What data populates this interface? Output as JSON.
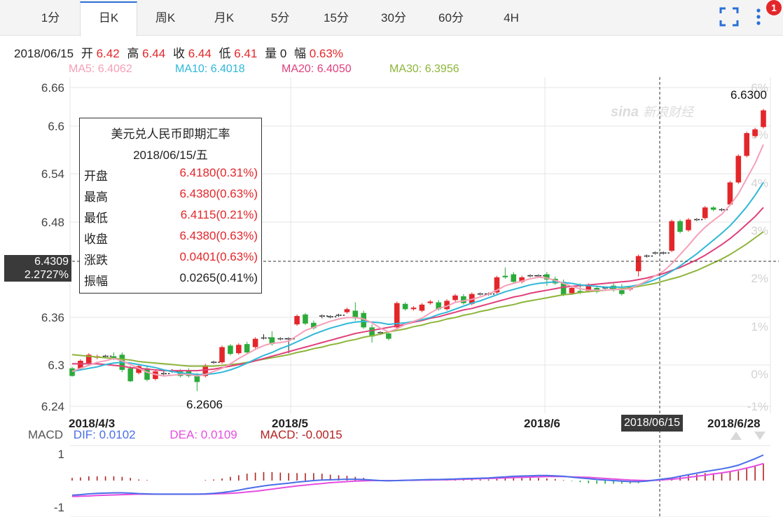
{
  "tabs": [
    "1分",
    "日K",
    "周K",
    "月K",
    "5分",
    "15分",
    "30分",
    "60分",
    "4H"
  ],
  "active_tab": "日K",
  "notification_count": "1",
  "info_bar": {
    "date": "2018/06/15",
    "open_label": "开",
    "open": "6.42",
    "high_label": "高",
    "high": "6.44",
    "close_label": "收",
    "close": "6.44",
    "low_label": "低",
    "low": "6.41",
    "vol_label": "量",
    "vol": "0",
    "amp_label": "幅",
    "amp": "0.63%"
  },
  "ma_legend": [
    {
      "text": "MA5: 6.4062",
      "color": "#f5a0b8"
    },
    {
      "text": "MA10: 6.4018",
      "color": "#2fb8d8"
    },
    {
      "text": "MA20: 6.4050",
      "color": "#e0407a"
    },
    {
      "text": "MA30: 6.3956",
      "color": "#8db53a"
    }
  ],
  "watermark": "新浪财经",
  "tooltip": {
    "title": "美元兑人民币即期汇率",
    "date": "2018/06/15/五",
    "rows": [
      {
        "label": "开盘",
        "value": "6.4180(0.31%)"
      },
      {
        "label": "最高",
        "value": "6.4380(0.63%)"
      },
      {
        "label": "最低",
        "value": "6.4115(0.21%)"
      },
      {
        "label": "收盘",
        "value": "6.4380(0.63%)"
      },
      {
        "label": "涨跌",
        "value": "0.0401(0.63%)"
      },
      {
        "label": "振幅",
        "value": "0.0265(0.41%)"
      }
    ]
  },
  "crosshair": {
    "price": "6.4309",
    "pct": "2.2727%",
    "date": "2018/06/15"
  },
  "max_label": "6.6300",
  "min_label": "6.2606",
  "macd_legend": {
    "name": "MACD",
    "dif": "DIF: 0.0102",
    "dea": "DEA: 0.0109",
    "macd": "MACD: -0.0015"
  },
  "colors": {
    "up": "#e3262a",
    "down": "#2bab3a",
    "dif": "#4a6ee8",
    "dea": "#e54ee0",
    "macd_bar": "#b22222"
  },
  "chart_data": {
    "type": "candlestick",
    "y_ticks": [
      "6.66",
      "6.6",
      "6.54",
      "6.48",
      "6.36",
      "6.3",
      "6.24"
    ],
    "pct_ticks": [
      "6%",
      "5%",
      "4%",
      "3%",
      "2%",
      "1%",
      "0%",
      "-1%"
    ],
    "x_ticks": [
      "2018/4/3",
      "2018/5",
      "2018/6",
      "2018/6/28"
    ],
    "macd_ticks": [
      "1",
      "-1"
    ],
    "ylim": [
      6.24,
      6.66
    ],
    "candles": [
      [
        6.29,
        6.28,
        6.292,
        6.279
      ],
      [
        6.29,
        6.3,
        6.302,
        6.288
      ],
      [
        6.297,
        6.308,
        6.31,
        6.295
      ],
      [
        6.304,
        6.306,
        6.308,
        6.302
      ],
      [
        6.306,
        6.306,
        6.308,
        6.304
      ],
      [
        6.306,
        6.303,
        6.311,
        6.301
      ],
      [
        6.308,
        6.288,
        6.311,
        6.285
      ],
      [
        6.29,
        6.273,
        6.293,
        6.272
      ],
      [
        6.284,
        6.293,
        6.296,
        6.282
      ],
      [
        6.29,
        6.275,
        6.293,
        6.273
      ],
      [
        6.276,
        6.286,
        6.288,
        6.274
      ],
      [
        6.283,
        6.283,
        6.286,
        6.281
      ],
      [
        6.286,
        6.286,
        6.289,
        6.284
      ],
      [
        6.286,
        6.28,
        6.289,
        6.278
      ],
      [
        6.287,
        6.28,
        6.29,
        6.278
      ],
      [
        6.28,
        6.272,
        6.284,
        6.26
      ],
      [
        6.28,
        6.294,
        6.296,
        6.278
      ],
      [
        6.298,
        6.298,
        6.3,
        6.296
      ],
      [
        6.298,
        6.318,
        6.32,
        6.296
      ],
      [
        6.32,
        6.309,
        6.322,
        6.307
      ],
      [
        6.31,
        6.321,
        6.323,
        6.308
      ],
      [
        6.322,
        6.311,
        6.325,
        6.309
      ],
      [
        6.318,
        6.329,
        6.331,
        6.316
      ],
      [
        6.33,
        6.33,
        6.335,
        6.328
      ],
      [
        6.331,
        6.322,
        6.339,
        6.32
      ],
      [
        6.329,
        6.329,
        6.331,
        6.327
      ],
      [
        6.329,
        6.329,
        6.331,
        6.31
      ],
      [
        6.348,
        6.359,
        6.361,
        6.346
      ],
      [
        6.361,
        6.349,
        6.363,
        6.347
      ],
      [
        6.35,
        6.343,
        6.353,
        6.341
      ],
      [
        6.358,
        6.359,
        6.361,
        6.356
      ],
      [
        6.358,
        6.358,
        6.36,
        6.356
      ],
      [
        6.36,
        6.36,
        6.362,
        6.358
      ],
      [
        6.364,
        6.368,
        6.37,
        6.362
      ],
      [
        6.366,
        6.356,
        6.377,
        6.353
      ],
      [
        6.363,
        6.344,
        6.366,
        6.342
      ],
      [
        6.344,
        6.332,
        6.348,
        6.324
      ],
      [
        6.337,
        6.337,
        6.339,
        6.335
      ],
      [
        6.336,
        6.329,
        6.339,
        6.327
      ],
      [
        6.344,
        6.376,
        6.378,
        6.342
      ],
      [
        6.375,
        6.368,
        6.377,
        6.366
      ],
      [
        6.368,
        6.37,
        6.372,
        6.366
      ],
      [
        6.366,
        6.374,
        6.376,
        6.364
      ],
      [
        6.376,
        6.378,
        6.38,
        6.374
      ],
      [
        6.377,
        6.368,
        6.38,
        6.366
      ],
      [
        6.368,
        6.379,
        6.381,
        6.366
      ],
      [
        6.38,
        6.386,
        6.388,
        6.378
      ],
      [
        6.385,
        6.376,
        6.388,
        6.374
      ],
      [
        6.375,
        6.388,
        6.39,
        6.373
      ],
      [
        6.388,
        6.388,
        6.39,
        6.386
      ],
      [
        6.388,
        6.388,
        6.39,
        6.386
      ],
      [
        6.39,
        6.41,
        6.412,
        6.388
      ],
      [
        6.412,
        6.41,
        6.423,
        6.408
      ],
      [
        6.414,
        6.404,
        6.417,
        6.402
      ],
      [
        6.404,
        6.41,
        6.412,
        6.402
      ],
      [
        6.412,
        6.412,
        6.414,
        6.41
      ],
      [
        6.412,
        6.412,
        6.414,
        6.41
      ],
      [
        6.414,
        6.407,
        6.417,
        6.399
      ],
      [
        6.408,
        6.402,
        6.411,
        6.4
      ],
      [
        6.404,
        6.387,
        6.407,
        6.385
      ],
      [
        6.389,
        6.396,
        6.398,
        6.387
      ],
      [
        6.392,
        6.39,
        6.402,
        6.388
      ],
      [
        6.392,
        6.4,
        6.402,
        6.39
      ],
      [
        6.396,
        6.391,
        6.399,
        6.389
      ],
      [
        6.396,
        6.396,
        6.398,
        6.394
      ],
      [
        6.399,
        6.393,
        6.402,
        6.391
      ],
      [
        6.393,
        6.388,
        6.401,
        6.386
      ],
      [
        6.394,
        6.397,
        6.399,
        6.392
      ],
      [
        6.418,
        6.438,
        6.44,
        6.411
      ],
      [
        6.438,
        6.438,
        6.44,
        6.436
      ],
      [
        6.442,
        6.442,
        6.444,
        6.44
      ],
      [
        6.442,
        6.442,
        6.444,
        6.44
      ],
      [
        6.445,
        6.484,
        6.486,
        6.443
      ],
      [
        6.484,
        6.47,
        6.486,
        6.468
      ],
      [
        6.472,
        6.486,
        6.488,
        6.47
      ],
      [
        6.486,
        6.486,
        6.488,
        6.484
      ],
      [
        6.488,
        6.502,
        6.504,
        6.486
      ],
      [
        6.502,
        6.499,
        6.504,
        6.497
      ],
      [
        6.499,
        6.499,
        6.501,
        6.497
      ],
      [
        6.506,
        6.535,
        6.537,
        6.504
      ],
      [
        6.535,
        6.57,
        6.572,
        6.533
      ],
      [
        6.57,
        6.6,
        6.602,
        6.568
      ],
      [
        6.596,
        6.605,
        6.607,
        6.594
      ],
      [
        6.608,
        6.63,
        6.632,
        6.606
      ]
    ],
    "ma5": [
      6.286,
      6.29,
      6.294,
      6.298,
      6.3,
      6.303,
      6.3,
      6.295,
      6.29,
      6.285,
      6.282,
      6.28,
      6.281,
      6.282,
      6.282,
      6.28,
      6.282,
      6.286,
      6.29,
      6.296,
      6.303,
      6.309,
      6.315,
      6.32,
      6.323,
      6.324,
      6.326,
      6.333,
      6.34,
      6.344,
      6.348,
      6.352,
      6.355,
      6.357,
      6.357,
      6.355,
      6.35,
      6.343,
      6.338,
      6.342,
      6.348,
      6.352,
      6.356,
      6.363,
      6.369,
      6.372,
      6.377,
      6.379,
      6.381,
      6.384,
      6.388,
      6.393,
      6.399,
      6.402,
      6.405,
      6.408,
      6.41,
      6.409,
      6.406,
      6.402,
      6.398,
      6.395,
      6.393,
      6.393,
      6.393,
      6.394,
      6.394,
      6.395,
      6.4,
      6.405,
      6.412,
      6.418,
      6.428,
      6.44,
      6.452,
      6.465,
      6.476,
      6.485,
      6.493,
      6.505,
      6.52,
      6.54,
      6.56,
      6.585
    ],
    "ma10": [
      6.286,
      6.288,
      6.29,
      6.292,
      6.295,
      6.297,
      6.298,
      6.297,
      6.295,
      6.293,
      6.291,
      6.288,
      6.286,
      6.284,
      6.283,
      6.282,
      6.282,
      6.283,
      6.285,
      6.288,
      6.292,
      6.297,
      6.302,
      6.307,
      6.311,
      6.316,
      6.32,
      6.325,
      6.33,
      6.335,
      6.339,
      6.343,
      6.346,
      6.349,
      6.351,
      6.352,
      6.351,
      6.35,
      6.348,
      6.349,
      6.35,
      6.352,
      6.354,
      6.357,
      6.361,
      6.364,
      6.368,
      6.372,
      6.376,
      6.379,
      6.383,
      6.387,
      6.391,
      6.394,
      6.397,
      6.4,
      6.402,
      6.403,
      6.404,
      6.403,
      6.402,
      6.4,
      6.399,
      6.398,
      6.397,
      6.397,
      6.397,
      6.398,
      6.4,
      6.403,
      6.407,
      6.412,
      6.418,
      6.425,
      6.433,
      6.441,
      6.45,
      6.459,
      6.468,
      6.478,
      6.49,
      6.503,
      6.518,
      6.535
    ],
    "ma20": [
      6.296,
      6.296,
      6.296,
      6.296,
      6.295,
      6.294,
      6.293,
      6.291,
      6.29,
      6.289,
      6.288,
      6.287,
      6.287,
      6.287,
      6.287,
      6.287,
      6.288,
      6.289,
      6.291,
      6.293,
      6.295,
      6.297,
      6.3,
      6.303,
      6.306,
      6.309,
      6.312,
      6.315,
      6.318,
      6.321,
      6.324,
      6.327,
      6.33,
      6.333,
      6.336,
      6.338,
      6.34,
      6.342,
      6.344,
      6.346,
      6.348,
      6.351,
      6.353,
      6.356,
      6.358,
      6.361,
      6.364,
      6.367,
      6.369,
      6.372,
      6.375,
      6.378,
      6.381,
      6.384,
      6.386,
      6.389,
      6.391,
      6.393,
      6.395,
      6.397,
      6.398,
      6.399,
      6.4,
      6.401,
      6.402,
      6.403,
      6.404,
      6.405,
      6.407,
      6.409,
      6.412,
      6.415,
      6.419,
      6.423,
      6.428,
      6.433,
      6.439,
      6.446,
      6.453,
      6.461,
      6.47,
      6.48,
      6.49,
      6.502
    ],
    "ma30": [
      6.308,
      6.307,
      6.306,
      6.305,
      6.304,
      6.303,
      6.302,
      6.301,
      6.299,
      6.298,
      6.297,
      6.296,
      6.295,
      6.294,
      6.293,
      6.293,
      6.293,
      6.293,
      6.294,
      6.295,
      6.296,
      6.298,
      6.3,
      6.302,
      6.304,
      6.306,
      6.308,
      6.311,
      6.313,
      6.316,
      6.318,
      6.321,
      6.323,
      6.326,
      6.328,
      6.331,
      6.333,
      6.335,
      6.338,
      6.34,
      6.342,
      6.345,
      6.347,
      6.35,
      6.352,
      6.355,
      6.357,
      6.36,
      6.362,
      6.365,
      6.367,
      6.37,
      6.372,
      6.374,
      6.377,
      6.379,
      6.381,
      6.383,
      6.385,
      6.387,
      6.388,
      6.39,
      6.391,
      6.392,
      6.393,
      6.394,
      6.395,
      6.396,
      6.398,
      6.4,
      6.402,
      6.405,
      6.408,
      6.411,
      6.415,
      6.419,
      6.424,
      6.429,
      6.434,
      6.44,
      6.447,
      6.454,
      6.462,
      6.47
    ],
    "macd_dif": [
      -0.55,
      -0.53,
      -0.5,
      -0.48,
      -0.47,
      -0.46,
      -0.46,
      -0.47,
      -0.49,
      -0.5,
      -0.51,
      -0.51,
      -0.51,
      -0.51,
      -0.51,
      -0.51,
      -0.5,
      -0.48,
      -0.45,
      -0.41,
      -0.36,
      -0.3,
      -0.25,
      -0.2,
      -0.16,
      -0.13,
      -0.1,
      -0.06,
      -0.03,
      0.0,
      0.02,
      0.03,
      0.04,
      0.05,
      0.05,
      0.04,
      0.02,
      0.0,
      -0.01,
      0.0,
      0.01,
      0.02,
      0.03,
      0.04,
      0.04,
      0.05,
      0.06,
      0.07,
      0.08,
      0.09,
      0.1,
      0.12,
      0.14,
      0.16,
      0.17,
      0.18,
      0.19,
      0.19,
      0.18,
      0.16,
      0.13,
      0.1,
      0.07,
      0.04,
      0.02,
      0.0,
      -0.02,
      -0.04,
      -0.04,
      -0.02,
      0.02,
      0.06,
      0.1,
      0.16,
      0.22,
      0.28,
      0.34,
      0.39,
      0.44,
      0.5,
      0.58,
      0.7,
      0.82,
      0.96
    ],
    "macd_dea": [
      -0.6,
      -0.59,
      -0.58,
      -0.56,
      -0.55,
      -0.54,
      -0.53,
      -0.52,
      -0.51,
      -0.51,
      -0.51,
      -0.51,
      -0.51,
      -0.51,
      -0.51,
      -0.51,
      -0.51,
      -0.5,
      -0.49,
      -0.48,
      -0.46,
      -0.43,
      -0.4,
      -0.36,
      -0.32,
      -0.28,
      -0.24,
      -0.2,
      -0.17,
      -0.14,
      -0.11,
      -0.08,
      -0.06,
      -0.04,
      -0.02,
      -0.01,
      0.0,
      0.0,
      0.0,
      0.0,
      0.01,
      0.01,
      0.02,
      0.02,
      0.03,
      0.03,
      0.04,
      0.05,
      0.06,
      0.07,
      0.08,
      0.09,
      0.1,
      0.11,
      0.12,
      0.13,
      0.14,
      0.15,
      0.15,
      0.15,
      0.14,
      0.13,
      0.12,
      0.1,
      0.08,
      0.06,
      0.04,
      0.02,
      0.01,
      0.0,
      0.01,
      0.03,
      0.05,
      0.08,
      0.12,
      0.16,
      0.2,
      0.25,
      0.29,
      0.34,
      0.4,
      0.47,
      0.55,
      0.64
    ]
  }
}
